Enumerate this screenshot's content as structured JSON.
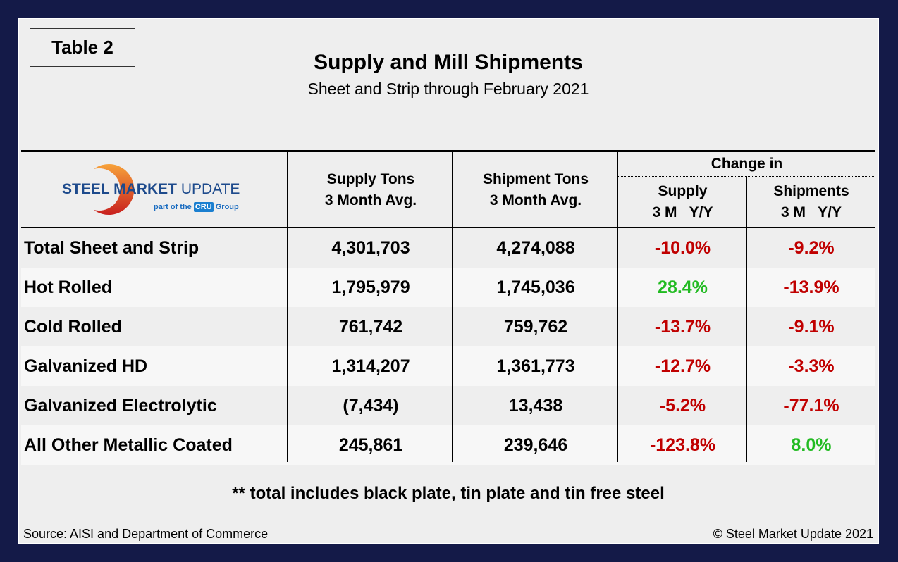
{
  "tag": "Table 2",
  "title": "Supply and Mill Shipments",
  "subtitle": "Sheet and Strip through February 2021",
  "logo": {
    "main_bold": "STEEL MARKET",
    "main_light": "UPDATE",
    "sub": "part of the",
    "cru": "CRU",
    "group": "Group"
  },
  "headers": {
    "supply": [
      "Supply Tons",
      "3 Month Avg."
    ],
    "shipment": [
      "Shipment Tons",
      "3 Month Avg."
    ],
    "change": "Change in",
    "chg_supply": [
      "Supply",
      "3 M   Y/Y"
    ],
    "chg_ship": [
      "Shipments",
      "3 M   Y/Y"
    ]
  },
  "rows": [
    {
      "label": "Total Sheet and Strip",
      "supply": "4,301,703",
      "shipments": "4,274,088",
      "chg_supply": "-10.0%",
      "chg_ship": "-9.2%"
    },
    {
      "label": "Hot Rolled",
      "supply": "1,795,979",
      "shipments": "1,745,036",
      "chg_supply": "28.4%",
      "chg_ship": "-13.9%"
    },
    {
      "label": "Cold Rolled",
      "supply": "761,742",
      "shipments": "759,762",
      "chg_supply": "-13.7%",
      "chg_ship": "-9.1%"
    },
    {
      "label": "Galvanized HD",
      "supply": "1,314,207",
      "shipments": "1,361,773",
      "chg_supply": "-12.7%",
      "chg_ship": "-3.3%"
    },
    {
      "label": "Galvanized Electrolytic",
      "supply": "(7,434)",
      "shipments": "13,438",
      "chg_supply": "-5.2%",
      "chg_ship": "-77.1%"
    },
    {
      "label": "All Other Metallic Coated",
      "supply": "245,861",
      "shipments": "239,646",
      "chg_supply": "-123.8%",
      "chg_ship": "8.0%"
    }
  ],
  "note": "** total includes black plate, tin plate and tin free steel",
  "source": "Source: AISI and Department of Commerce",
  "copyright": "© Steel Market Update 2021",
  "colors": {
    "negative": "#c00000",
    "positive": "#22bb22",
    "frame": "#141a48"
  }
}
